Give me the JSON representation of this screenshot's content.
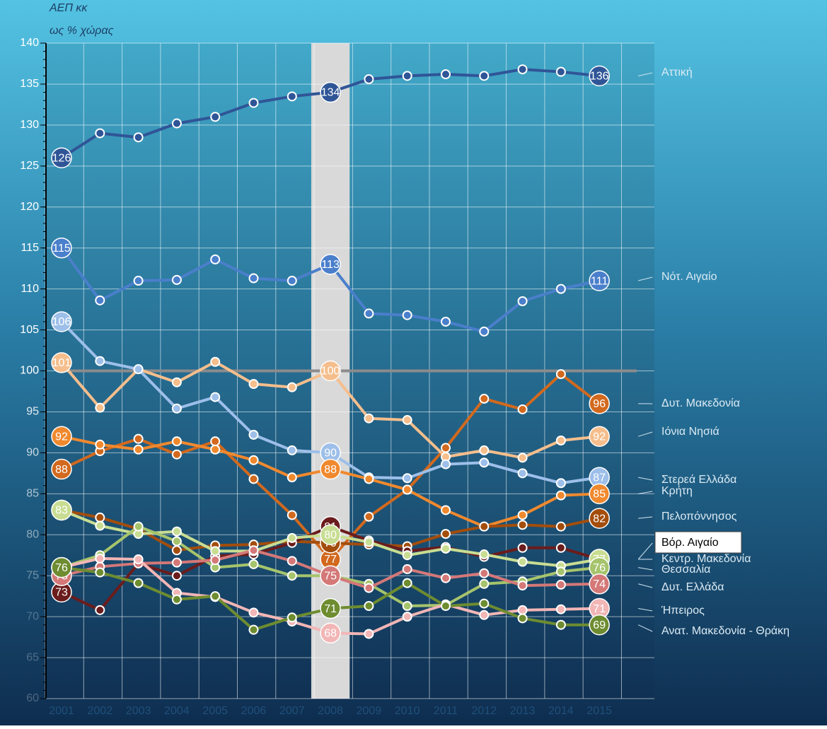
{
  "chart_data": {
    "type": "line",
    "y_label_lines": [
      "ΑΕΠ κκ",
      "ως % χώρας"
    ],
    "categories": [
      "2001",
      "2002",
      "2003",
      "2004",
      "2005",
      "2006",
      "2007",
      "2008",
      "2009",
      "2010",
      "2011",
      "2012",
      "2013",
      "2014",
      "2015"
    ],
    "highlight_category": "2008",
    "reference_value": 100,
    "ylim": [
      60,
      140
    ],
    "yticks": [
      60,
      65,
      70,
      75,
      80,
      85,
      90,
      95,
      100,
      105,
      110,
      115,
      120,
      125,
      130,
      135,
      140
    ],
    "grid": true,
    "series": [
      {
        "name": "Αττική",
        "color": "#2f5597",
        "values": [
          126,
          129,
          128.5,
          130.2,
          131,
          132.7,
          133.5,
          134,
          135.6,
          136,
          136.2,
          136,
          136.8,
          136.5,
          136
        ]
      },
      {
        "name": "Νότ. Αιγαίο",
        "color": "#4a7fcb",
        "values": [
          115,
          108.6,
          111,
          111.1,
          113.6,
          111.3,
          111,
          113,
          107,
          106.8,
          106,
          104.8,
          108.5,
          110,
          111
        ]
      },
      {
        "name": "Δυτ. Μακεδονία",
        "color": "#d2691e",
        "values": [
          88,
          90.2,
          91.7,
          89.8,
          91.4,
          86.8,
          82.4,
          77,
          82.2,
          85.5,
          90.6,
          96.6,
          95.3,
          99.6,
          96
        ]
      },
      {
        "name": "Ιόνια Νησιά",
        "color": "#f5be8c",
        "values": [
          101,
          95.5,
          100.2,
          98.6,
          101.1,
          98.4,
          98,
          100,
          94.2,
          94,
          89.5,
          90.3,
          89.4,
          91.5,
          92
        ]
      },
      {
        "name": "Στερεά Ελλάδα",
        "color": "#9dbfe9",
        "values": [
          106,
          101.2,
          100.2,
          95.4,
          96.8,
          92.2,
          90.3,
          90,
          87,
          86.9,
          88.6,
          88.8,
          87.5,
          86.3,
          87
        ]
      },
      {
        "name": "Κρήτη",
        "color": "#f0892e",
        "values": [
          92,
          91,
          90.4,
          91.4,
          90.4,
          89.1,
          87,
          88,
          86.8,
          85.5,
          83,
          81,
          82.4,
          84.8,
          85
        ]
      },
      {
        "name": "Πελοπόννησος",
        "color": "#a34d0c",
        "values": [
          83,
          82.1,
          80.7,
          78.1,
          78.7,
          78.8,
          79.2,
          79,
          78.8,
          78.6,
          80.1,
          81,
          81.2,
          81,
          82
        ]
      },
      {
        "name": "Βόρ. Αιγαίο",
        "color": "#6b1c1c",
        "values": [
          73,
          70.8,
          76.5,
          75,
          77.4,
          77.6,
          79,
          81,
          79.3,
          78,
          78.5,
          77.3,
          78.4,
          78.4,
          77
        ]
      },
      {
        "name": "Κεντρ. Μακεδονία",
        "color": "#c8dd92",
        "values": [
          83,
          81.1,
          80.1,
          80.4,
          78,
          78,
          79.6,
          80,
          79.1,
          77.5,
          78.3,
          77.6,
          76.7,
          76.2,
          77
        ]
      },
      {
        "name": "Θεσσαλία",
        "color": "#a6c46c",
        "values": [
          76,
          77.5,
          81,
          79.2,
          76,
          76.4,
          75,
          75,
          74,
          71.3,
          71.4,
          74,
          74.3,
          75.5,
          76
        ]
      },
      {
        "name": "Δυτ. Ελλάδα",
        "color": "#d47878",
        "values": [
          75,
          76.1,
          76.5,
          76.6,
          76.9,
          78.1,
          76.8,
          75,
          73.5,
          75.8,
          74.7,
          75.3,
          73.8,
          73.9,
          74
        ]
      },
      {
        "name": "Ήπειρος",
        "color": "#f2b6b6",
        "values": [
          76,
          77.1,
          77,
          72.9,
          72.4,
          70.5,
          69.4,
          68,
          67.9,
          70,
          71.5,
          70.2,
          70.8,
          70.9,
          71
        ]
      },
      {
        "name": "Ανατ. Μακεδονία - Θράκη",
        "color": "#6e8c30",
        "values": [
          76,
          75.4,
          74.1,
          72.1,
          72.5,
          68.4,
          69.9,
          71,
          71.3,
          74.1,
          71.3,
          71.6,
          69.8,
          69,
          69
        ]
      }
    ]
  }
}
